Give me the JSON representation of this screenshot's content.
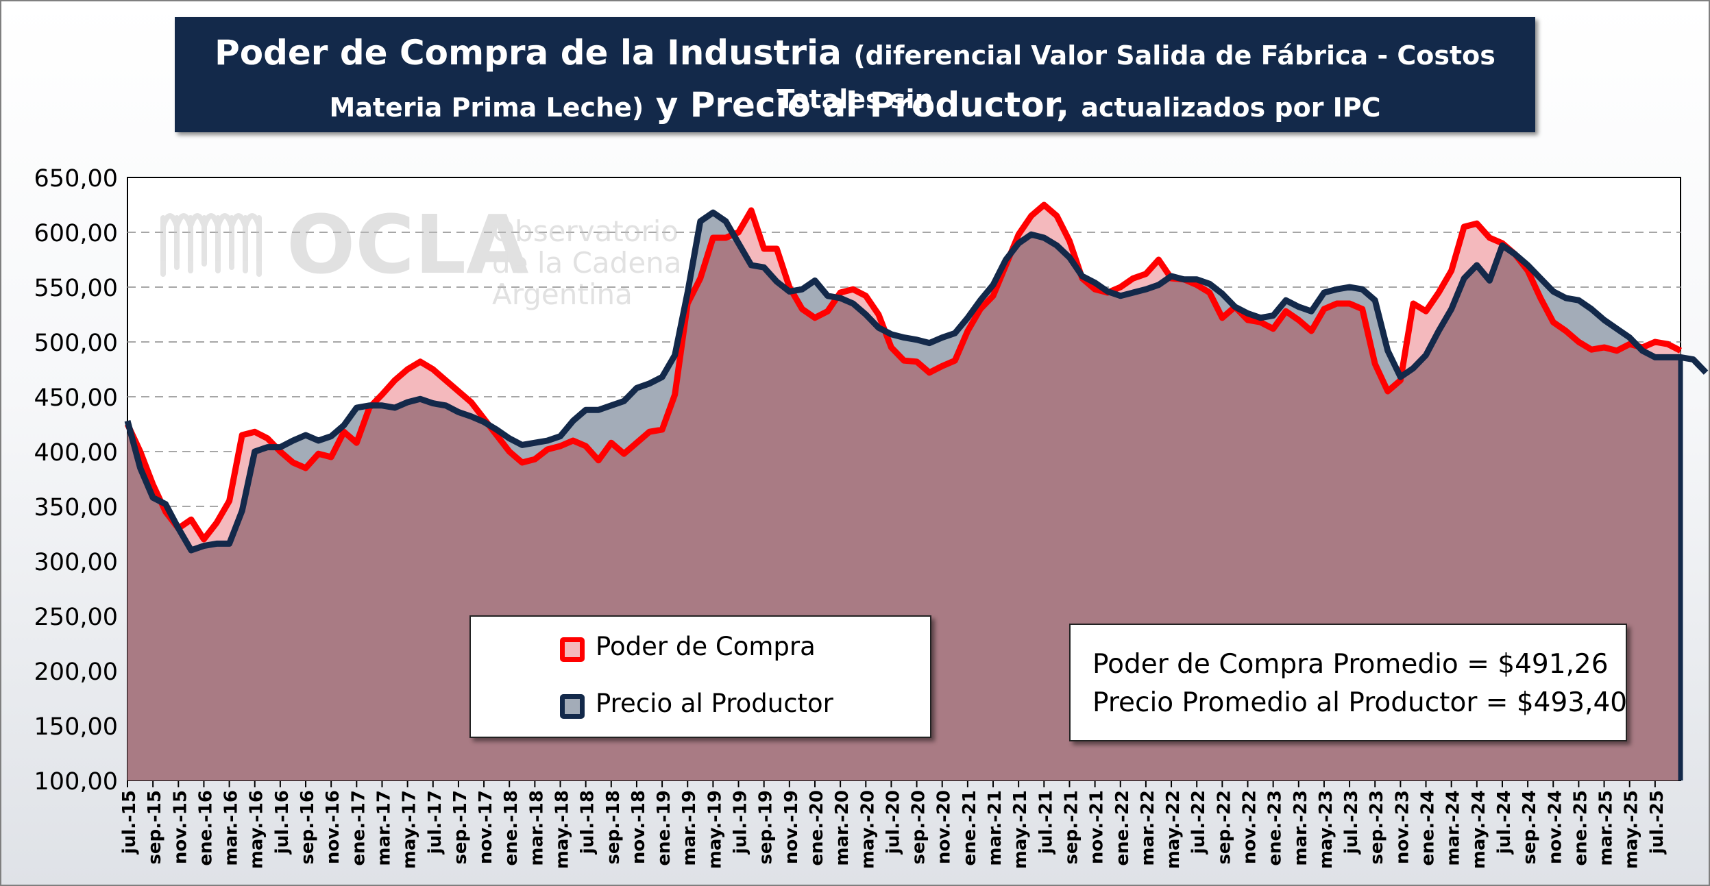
{
  "title": {
    "part1": "Poder de Compra de la Industria",
    "part2": "(diferencial Valor Salida de Fábrica - Costos Totales sin",
    "part3": "Materia Prima Leche)",
    "part4": "y Precio al Productor,",
    "part5": "actualizados por IPC"
  },
  "watermark": {
    "logo": "OCLA",
    "line1": "Observatorio",
    "line2": "de la Cadena Láctea",
    "line3": "Argentina"
  },
  "stats": {
    "line1": "Poder de Compra Promedio = $491,26",
    "line2": "Precio Promedio al Productor = $493,40"
  },
  "colors": {
    "poder": "#ff0000",
    "precio": "#13294a",
    "fill": "#a97b84",
    "gap_poder": "#f4b9bd",
    "gap_precio": "#a3acb8"
  },
  "chart_data": {
    "type": "area",
    "title": "",
    "xlabel": "",
    "ylabel": "",
    "ylim": [
      100,
      650
    ],
    "yticks": [
      "650,00",
      "600,00",
      "550,00",
      "500,00",
      "450,00",
      "400,00",
      "350,00",
      "300,00",
      "250,00",
      "200,00",
      "150,00",
      "100,00"
    ],
    "x_tick_labels": [
      "jul.-15",
      "sep.-15",
      "nov.-15",
      "ene.-16",
      "mar.-16",
      "may.-16",
      "jul.-16",
      "sep.-16",
      "nov.-16",
      "ene.-17",
      "mar.-17",
      "may.-17",
      "jul.-17",
      "sep.-17",
      "nov.-17",
      "ene.-18",
      "mar.-18",
      "may.-18",
      "jul.-18",
      "sep.-18",
      "nov.-18",
      "ene.-19",
      "mar.-19",
      "may.-19",
      "jul.-19",
      "sep.-19",
      "nov.-19",
      "ene.-20",
      "mar.-20",
      "may.-20",
      "jul.-20",
      "sep.-20",
      "nov.-20",
      "ene.-21",
      "mar.-21",
      "may.-21",
      "jul.-21",
      "sep.-21",
      "nov.-21",
      "ene.-22",
      "mar.-22",
      "may.-22",
      "jul.-22",
      "sep.-22",
      "nov.-22",
      "ene.-23",
      "mar.-23",
      "may.-23",
      "jul.-23",
      "sep.-23",
      "nov.-23",
      "ene.-24",
      "mar.-24",
      "may.-24",
      "jul.-24",
      "sep.-24",
      "nov.-24",
      "ene.-25",
      "mar.-25",
      "may.-25",
      "jul.-25"
    ],
    "grid": true,
    "legend": "bottom-left",
    "series": [
      {
        "name": "Poder de Compra",
        "values": [
          425,
          400,
          370,
          345,
          330,
          338,
          320,
          335,
          355,
          415,
          418,
          412,
          400,
          390,
          385,
          398,
          395,
          418,
          408,
          440,
          452,
          465,
          475,
          482,
          475,
          465,
          455,
          445,
          430,
          415,
          400,
          390,
          393,
          402,
          405,
          410,
          405,
          392,
          408,
          398,
          408,
          418,
          420,
          452,
          535,
          558,
          595,
          595,
          600,
          620,
          585,
          585,
          550,
          530,
          522,
          528,
          545,
          548,
          542,
          525,
          495,
          483,
          482,
          472,
          478,
          483,
          510,
          530,
          542,
          570,
          598,
          615,
          625,
          615,
          592,
          558,
          548,
          545,
          550,
          558,
          562,
          575,
          558,
          557,
          552,
          545,
          522,
          532,
          520,
          518,
          512,
          528,
          520,
          510,
          530,
          535,
          535,
          530,
          480,
          455,
          465,
          535,
          528,
          545,
          565,
          605,
          608,
          595,
          590,
          580,
          565,
          540,
          518,
          510,
          500,
          493,
          495,
          492,
          498,
          495,
          500,
          498,
          492
        ]
      },
      {
        "name": "Precio al Productor",
        "values": [
          428,
          385,
          358,
          352,
          330,
          310,
          314,
          316,
          316,
          346,
          400,
          404,
          404,
          410,
          415,
          410,
          414,
          424,
          440,
          442,
          442,
          440,
          445,
          448,
          444,
          442,
          436,
          432,
          427,
          420,
          412,
          406,
          408,
          410,
          414,
          428,
          438,
          438,
          442,
          446,
          458,
          462,
          468,
          488,
          545,
          610,
          618,
          610,
          590,
          570,
          568,
          555,
          546,
          548,
          556,
          542,
          540,
          535,
          525,
          513,
          507,
          504,
          502,
          499,
          504,
          508,
          522,
          538,
          552,
          575,
          590,
          598,
          595,
          588,
          577,
          560,
          554,
          546,
          542,
          545,
          548,
          552,
          560,
          557,
          557,
          553,
          544,
          532,
          526,
          522,
          524,
          538,
          532,
          528,
          545,
          548,
          550,
          548,
          538,
          492,
          468,
          476,
          488,
          510,
          530,
          558,
          570,
          556,
          588,
          580,
          570,
          558,
          546,
          540,
          538,
          530,
          520,
          512,
          504,
          492,
          486,
          486,
          486,
          484,
          472
        ]
      }
    ]
  }
}
